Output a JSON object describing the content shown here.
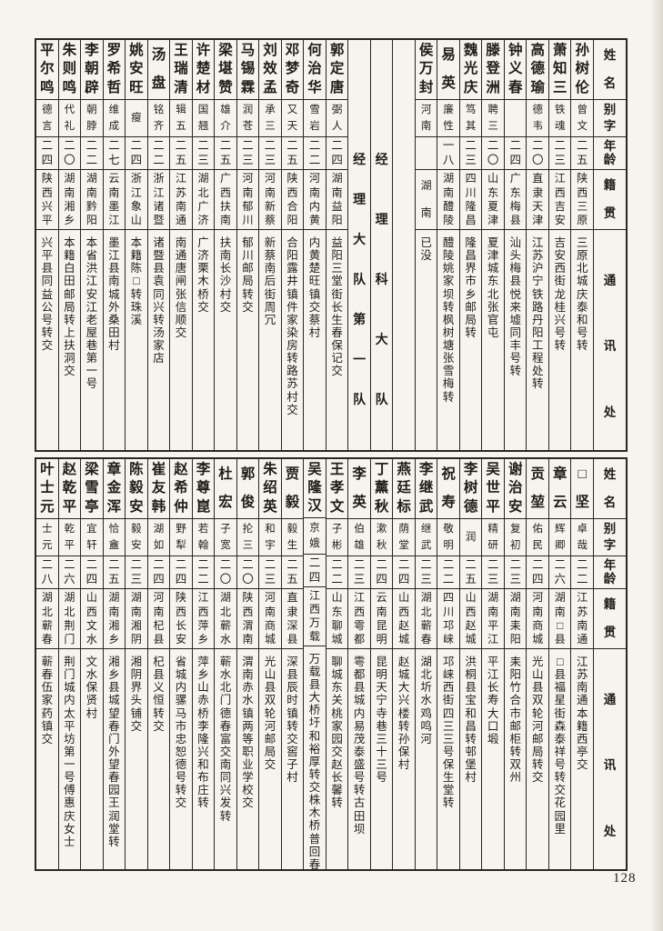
{
  "page": {
    "number": "128"
  },
  "colors": {
    "paper": "#f7f4ee",
    "ink": "#201d19",
    "line": "#2a2622"
  },
  "column_headers": [
    "姓名",
    "别字",
    "年龄",
    "籍贯",
    "通讯处"
  ],
  "tables": [
    {
      "name": "top-roster",
      "columns": [
        {
          "type": "header"
        },
        {
          "type": "person",
          "name": "孙树伦",
          "zi": "曾文",
          "age": "二五",
          "native": "陕西三原",
          "address": "三原北城庆泰和号转"
        },
        {
          "type": "person",
          "name": "萧知三",
          "zi": "铁魂",
          "age": "二三",
          "native": "江西吉安",
          "address": "吉安西街龙桂兴号转"
        },
        {
          "type": "person",
          "name": "高德瑜",
          "zi": "德韦",
          "age": "二〇",
          "native": "直隶天津",
          "address": "江苏沪宁铁路丹阳工程处转"
        },
        {
          "type": "person",
          "name": "钟义春",
          "zi": "",
          "age": "二四",
          "native": "广东梅县",
          "address": "汕头梅县悦来墟同丰号转"
        },
        {
          "type": "person",
          "name": "滕登洲",
          "zi": "聘三",
          "age": "二〇",
          "native": "山东夏津",
          "address": "夏津城东北张官屯"
        },
        {
          "type": "person",
          "name": "魏光庆",
          "zi": "笃其",
          "age": "二三",
          "native": "四川隆昌",
          "address": "隆昌界市乡邮局转"
        },
        {
          "type": "person",
          "name": "易英",
          "zi": "廉性",
          "age": "一八",
          "native": "湖南醴陵",
          "address": "醴陵姚家坝转枫树塘张雪梅转"
        },
        {
          "type": "person",
          "name": "侯万封",
          "zi": "河南",
          "age": "",
          "native": "湖南",
          "address": "已没"
        },
        {
          "type": "empty"
        },
        {
          "type": "section",
          "label": "经理科大队"
        },
        {
          "type": "section",
          "label": "经理大队第一队"
        },
        {
          "type": "person",
          "name": "郭定唐",
          "zi": "弼人",
          "age": "二四",
          "native": "湖南益阳",
          "address": "益阳三堂街长生春保记交"
        },
        {
          "type": "person",
          "name": "何治华",
          "zi": "雪岩",
          "age": "二二",
          "native": "河南内黄",
          "address": "内黄楚旺镇交蔡村"
        },
        {
          "type": "person",
          "name": "邓梦奇",
          "zi": "又天",
          "age": "二五",
          "native": "陕西合阳",
          "address": "合阳露井镇件家染房转路苏村交"
        },
        {
          "type": "person",
          "name": "刘效孟",
          "zi": "承三",
          "age": "二三",
          "native": "河南新蔡",
          "address": "新蔡南后街周冗"
        },
        {
          "type": "person",
          "name": "马锡霖",
          "zi": "润苍",
          "age": "二三",
          "native": "河南郁川",
          "address": "郁川邮局转交"
        },
        {
          "type": "person",
          "name": "梁堪赞",
          "zi": "雄介",
          "age": "二五",
          "native": "广西扶南",
          "address": "扶南长沙村交"
        },
        {
          "type": "person",
          "name": "许楚材",
          "zi": "国翘",
          "age": "二三",
          "native": "湖北广济",
          "address": "广济栗木桥交"
        },
        {
          "type": "person",
          "name": "王瑞清",
          "zi": "辑五",
          "age": "二五",
          "native": "江苏南通",
          "address": "南通唐闸张信顺交"
        },
        {
          "type": "person",
          "name": "汤盘",
          "zi": "铭齐",
          "age": "二二",
          "native": "浙江诸暨",
          "address": "诸暨县袁同兴转汤家店"
        },
        {
          "type": "person",
          "name": "姚安旺",
          "zi": "瘦",
          "age": "二四",
          "native": "浙江象山",
          "address": "本籍陈□转珠溪"
        },
        {
          "type": "person",
          "name": "罗希哲",
          "zi": "维成",
          "age": "二七",
          "native": "云南墨江",
          "address": "墨江县南城外桑田村"
        },
        {
          "type": "person",
          "name": "李朝辟",
          "zi": "朝脖",
          "age": "二二",
          "native": "湖南黔阳",
          "address": "本省洪江安江老屋巷第一号"
        },
        {
          "type": "person",
          "name": "朱则鸣",
          "zi": "代礼",
          "age": "二〇",
          "native": "湖南湘乡",
          "address": "本籍白田邮局转上扶洞交"
        },
        {
          "type": "person",
          "name": "平尔鸣",
          "zi": "德言",
          "age": "二四",
          "native": "陕西兴平",
          "address": "兴平县同益公号转交"
        }
      ]
    },
    {
      "name": "bottom-roster",
      "columns": [
        {
          "type": "header"
        },
        {
          "type": "person",
          "name": "□坚",
          "zi": "卓哉",
          "age": "二二",
          "native": "江苏南通",
          "address": "江苏南通本籍西亭交"
        },
        {
          "type": "person",
          "name": "章云",
          "zi": "辉卿",
          "age": "二六",
          "native": "湖南□县",
          "address": "□县福星街森泰祥号转交花园里"
        },
        {
          "type": "person",
          "name": "贡堃",
          "zi": "佑民",
          "age": "二四",
          "native": "河南商城",
          "address": "光山县双轮河邮局转交"
        },
        {
          "type": "person",
          "name": "谢治安",
          "zi": "复初",
          "age": "二三",
          "native": "湖南耒阳",
          "address": "耒阳竹合市邮柜转双州"
        },
        {
          "type": "person",
          "name": "吴世平",
          "zi": "精研",
          "age": "二三",
          "native": "湖南平江",
          "address": "平江长寿大口塅"
        },
        {
          "type": "person",
          "name": "李树德",
          "zi": "润",
          "age": "二五",
          "native": "山西赵城",
          "address": "洪桐县宝和昌转邨堡村"
        },
        {
          "type": "person",
          "name": "祝寿",
          "zi": "敬明",
          "age": "二二",
          "native": "四川邛崃",
          "address": "邛崃西街四三三号保生堂转"
        },
        {
          "type": "person",
          "name": "李继武",
          "zi": "继武",
          "age": "二三",
          "native": "湖北蕲春",
          "address": "湖北圻水鸡鸣河"
        },
        {
          "type": "person",
          "name": "燕廷标",
          "zi": "荫堂",
          "age": "二四",
          "native": "山西赵城",
          "address": "赵城大兴楼转孙保村"
        },
        {
          "type": "person",
          "name": "丁薰秋",
          "zi": "漱秋",
          "age": "二四",
          "native": "云南昆明",
          "address": "昆明天宁寺巷三十三号"
        },
        {
          "type": "person",
          "name": "李英",
          "zi": "伯雄",
          "age": "二三",
          "native": "江西雩都",
          "address": "雩都县城内易茂泰盛号转古田坝"
        },
        {
          "type": "person",
          "name": "王孝文",
          "zi": "子彬",
          "age": "二二",
          "native": "山东聊城",
          "address": "聊城东关桃家园交赵长馨转"
        },
        {
          "type": "person",
          "name": "吴隆汉",
          "zi": "京娥",
          "age": "二四",
          "native": "江西万载",
          "address": "万载县大桥圩和裕厚转交株木桥普回春"
        },
        {
          "type": "person",
          "name": "贾毅",
          "zi": "毅生",
          "age": "二五",
          "native": "直隶深县",
          "address": "深县辰时镇转交窖子村"
        },
        {
          "type": "person",
          "name": "朱绍英",
          "zi": "和宇",
          "age": "二三",
          "native": "河南商城",
          "address": "光山县双轮河邮局交"
        },
        {
          "type": "person",
          "name": "郭俊",
          "zi": "抡三",
          "age": "二〇",
          "native": "陕西渭南",
          "address": "渭南赤水镇两等职业学校交"
        },
        {
          "type": "person",
          "name": "杜宏",
          "zi": "子宽",
          "age": "二〇",
          "native": "湖北蕲水",
          "address": "蕲水北门德春富交南同兴发转"
        },
        {
          "type": "person",
          "name": "李尊崑",
          "zi": "若翰",
          "age": "二二",
          "native": "江西萍乡",
          "address": "萍乡山赤桥李隆兴和布庄转"
        },
        {
          "type": "person",
          "name": "赵希仲",
          "zi": "野犁",
          "age": "二四",
          "native": "陕西长安",
          "address": "省城内骡马市忠恕德号转交"
        },
        {
          "type": "person",
          "name": "崔友韩",
          "zi": "湖如",
          "age": "二四",
          "native": "河南杞县",
          "address": "杞县义恒转交"
        },
        {
          "type": "person",
          "name": "陈毅安",
          "zi": "毅安",
          "age": "二三",
          "native": "湖南湘阴",
          "address": "湘阴界头铺交"
        },
        {
          "type": "person",
          "name": "章金浑",
          "zi": "恰盦",
          "age": "二五",
          "native": "湖南湘乡",
          "address": "湘乡县城望春门外望春园王润堂转"
        },
        {
          "type": "person",
          "name": "梁雪亭",
          "zi": "宜轩",
          "age": "二四",
          "native": "山西文水",
          "address": "文水保贤村"
        },
        {
          "type": "person",
          "name": "赵乾平",
          "zi": "乾平",
          "age": "二六",
          "native": "湖北荆门",
          "address": "荆门城内太平坊第一号傅惠庆女士"
        },
        {
          "type": "person",
          "name": "叶士元",
          "zi": "士元",
          "age": "二八",
          "native": "湖北蕲春",
          "address": "蕲春伍家药镇交"
        }
      ]
    }
  ]
}
